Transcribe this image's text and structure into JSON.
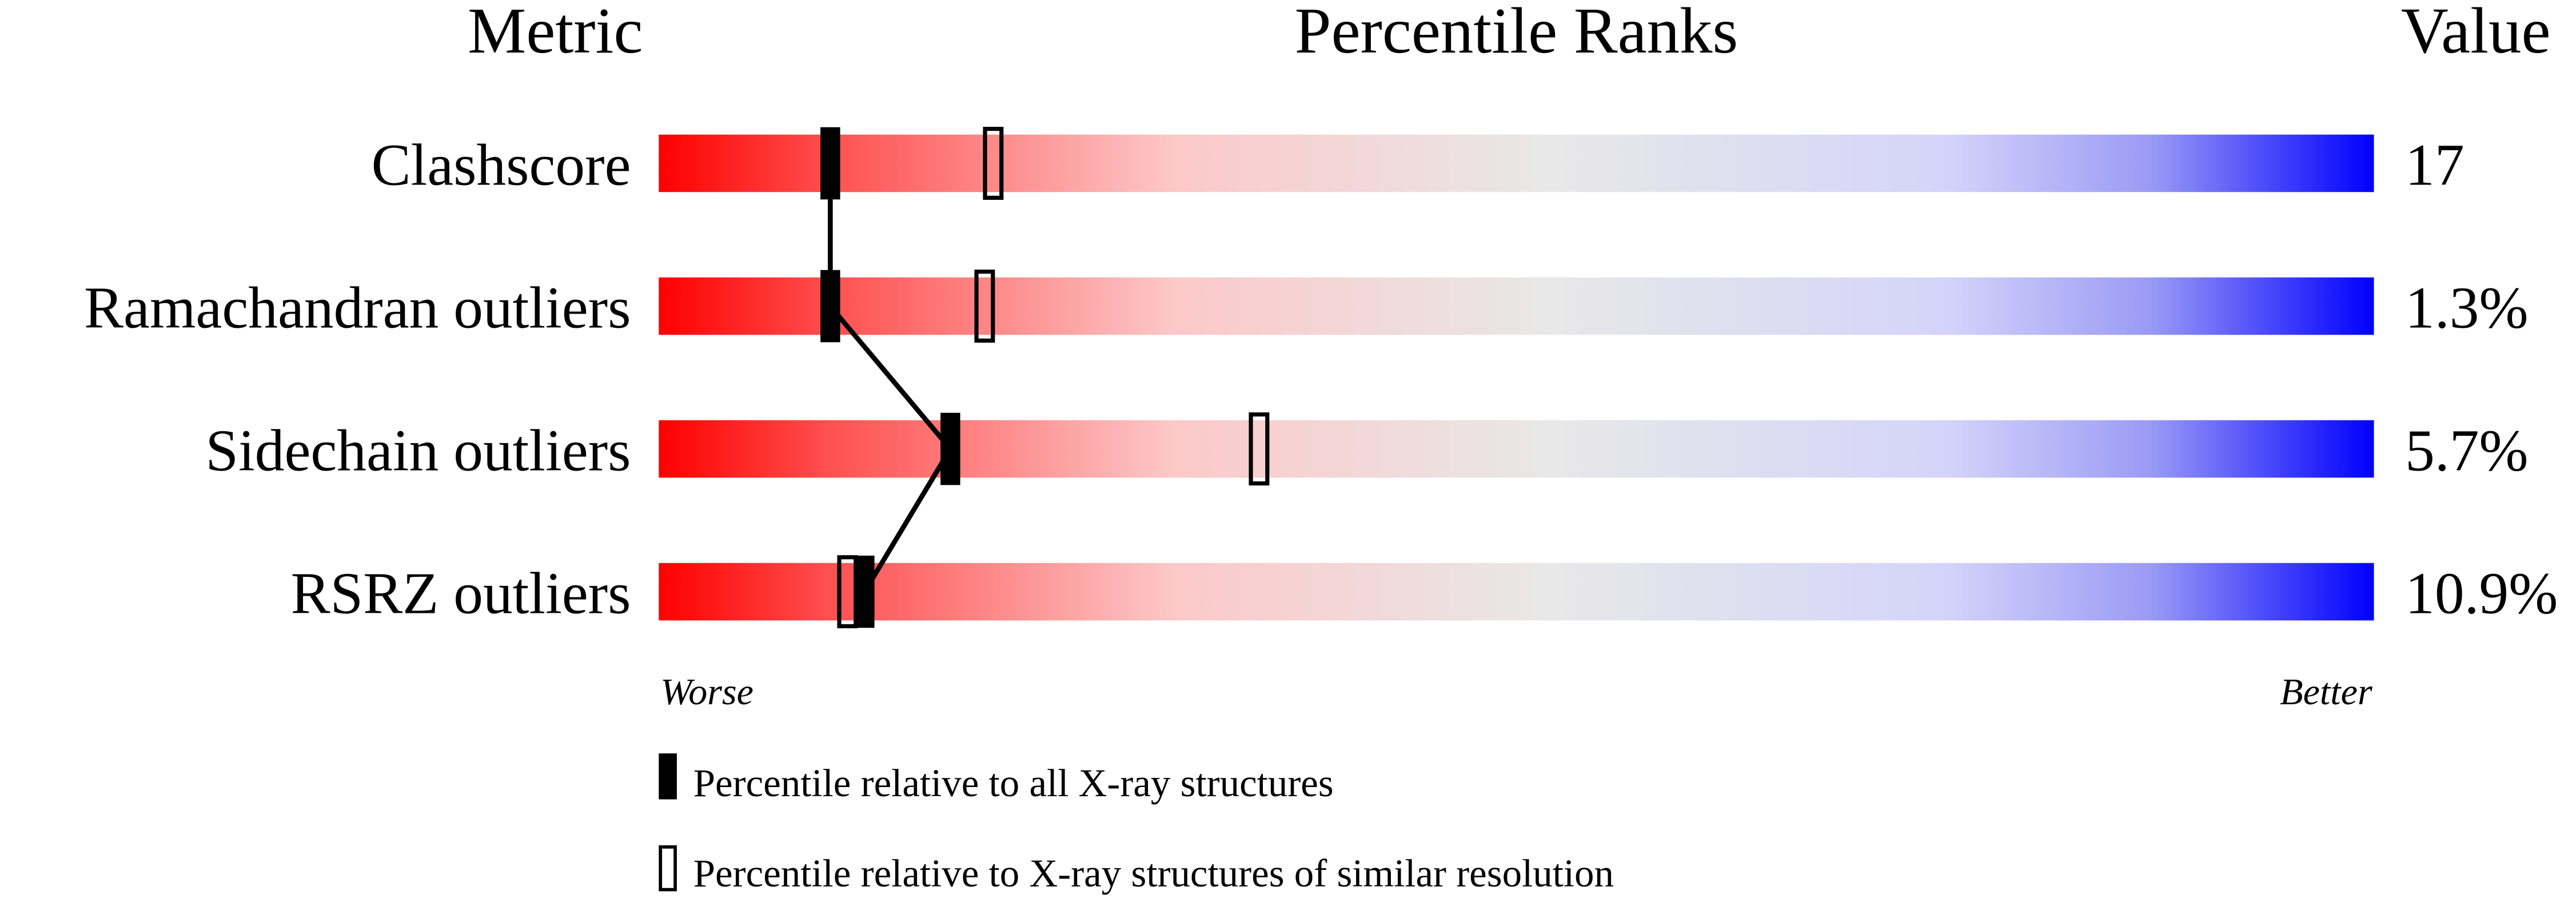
{
  "chart_data": {
    "type": "slider",
    "headers": {
      "metric": "Metric",
      "ranks": "Percentile Ranks",
      "value": "Value"
    },
    "categories": [
      "Clashscore",
      "Ramachandran outliers",
      "Sidechain outliers",
      "RSRZ outliers"
    ],
    "metric_values": [
      "17",
      "1.3%",
      "5.7%",
      "10.9%"
    ],
    "xlim": [
      0,
      100
    ],
    "axis_labels": {
      "left": "Worse",
      "right": "Better"
    },
    "series": [
      {
        "name": "Percentile relative to all X-ray structures",
        "color": "#000000",
        "style": "filled",
        "values": [
          10,
          10,
          17,
          12
        ]
      },
      {
        "name": "Percentile relative to X-ray structures of similar resolution",
        "color": "#000000",
        "style": "open",
        "values": [
          19.5,
          19,
          35,
          11
        ]
      }
    ]
  }
}
